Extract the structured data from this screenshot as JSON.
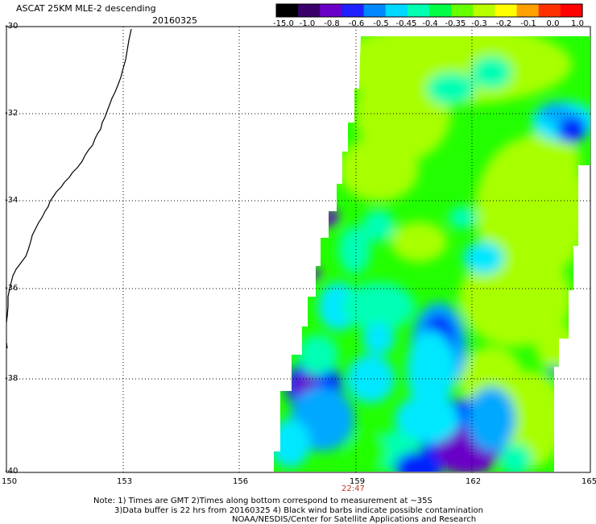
{
  "header": {
    "title": "ASCAT 25KM MLE-2 descending",
    "date": "20160325"
  },
  "colorbar": {
    "tick_labels": [
      "-15.0",
      "-1.0",
      "-0.8",
      "-0.6",
      "-0.5",
      "-0.45",
      "-0.4",
      "-0.35",
      "-0.3",
      "-0.2",
      "-0.1",
      "0.0",
      "1.0"
    ],
    "colors": [
      "#000000",
      "#3a006a",
      "#6a00c8",
      "#1f1fff",
      "#0088ff",
      "#00d8ff",
      "#00ffb0",
      "#00ff44",
      "#66ff00",
      "#b8ff00",
      "#ffff00",
      "#ffa000",
      "#ff3000",
      "#ff0000"
    ]
  },
  "axes": {
    "lat_labels": [
      "-30",
      "-32",
      "-34",
      "-36",
      "-38",
      "-40"
    ],
    "lon_labels": [
      "150",
      "153",
      "156",
      "159",
      "162",
      "165"
    ],
    "time_label": "22:47"
  },
  "notes": {
    "line1": "Note: 1) Times are GMT 2)Times along bottom correspond to measurement at ~35S",
    "line2": "3)Data buffer is 22 hrs from 20160325 4) Black wind barbs indicate possible contamination",
    "line3": "NOAA/NESDIS/Center for Satellite Applications and Research"
  },
  "swath_colors": {
    "lime": "#a8ff00",
    "green": "#22ff00",
    "aqua": "#00ffb4",
    "cyan": "#00e8ff",
    "sky": "#00a8ff",
    "blue": "#0020ff",
    "violet": "#6a00c8"
  }
}
